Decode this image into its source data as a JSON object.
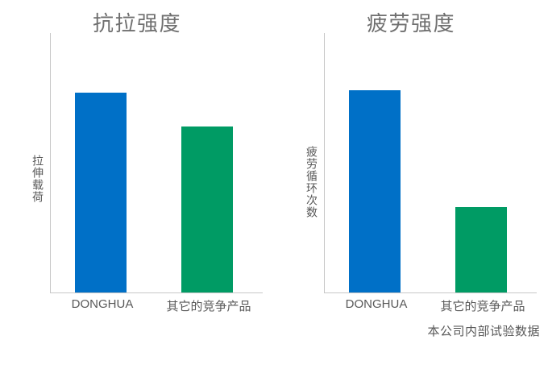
{
  "colors": {
    "donghua_bar": "#0070c7",
    "competitor_bar": "#009b64",
    "axis_line": "#c7c7c7",
    "label_text": "#595959",
    "title_text": "#6f6f6f"
  },
  "footer": {
    "note": "本公司内部试验数据"
  },
  "chart_data": [
    {
      "type": "bar",
      "title": "抗拉强度",
      "xlabel": "",
      "ylabel": "拉伸载荷",
      "categories": [
        "DONGHUA",
        "其它的竞争产品"
      ],
      "values": [
        77,
        64
      ],
      "ylim": [
        0,
        100
      ],
      "grid": false,
      "legend": false,
      "axis_ticks": false,
      "series_colors": [
        "#0070c7",
        "#009b64"
      ]
    },
    {
      "type": "bar",
      "title": "疲劳强度",
      "xlabel": "",
      "ylabel": "疲劳循环次数",
      "categories": [
        "DONGHUA",
        "其它的竞争产品"
      ],
      "values": [
        78,
        33
      ],
      "ylim": [
        0,
        100
      ],
      "grid": false,
      "legend": false,
      "axis_ticks": false,
      "series_colors": [
        "#0070c7",
        "#009b64"
      ]
    }
  ]
}
